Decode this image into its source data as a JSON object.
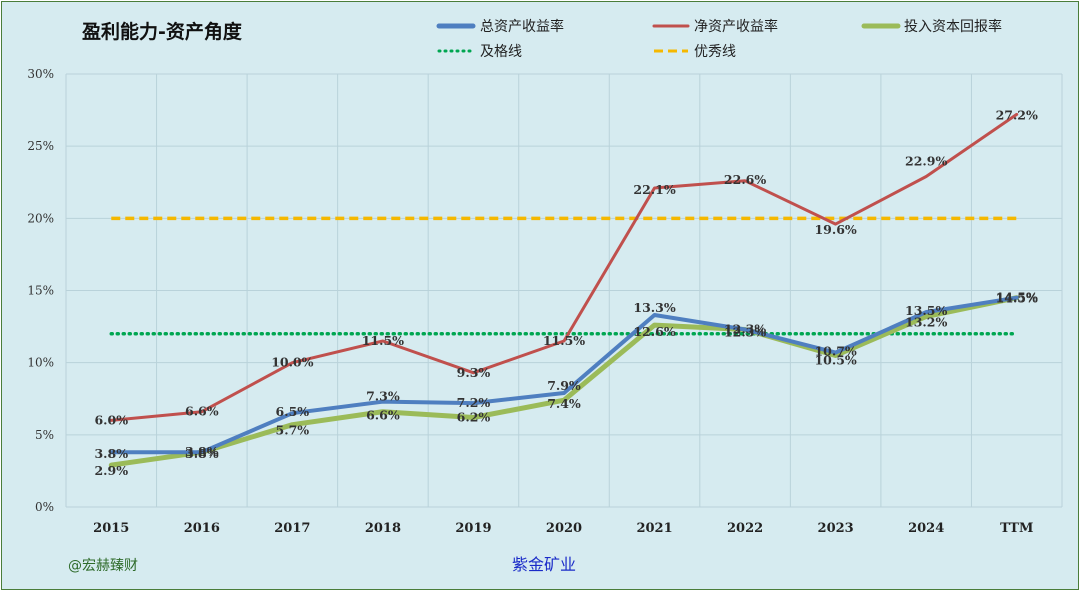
{
  "watermark": "@宏赫臻财",
  "company": "紫金矿业",
  "colors": {
    "background": "#d6ebf0",
    "grid": "#b9d2da",
    "roa": "#4f7fc0",
    "roe": "#c0504d",
    "roic": "#9bbb59",
    "pass": "#00a651",
    "excellent": "#f5b800"
  },
  "chart_data": {
    "type": "line",
    "title": "盈利能力-资产角度",
    "categories": [
      "2015",
      "2016",
      "2017",
      "2018",
      "2019",
      "2020",
      "2021",
      "2022",
      "2023",
      "2024",
      "TTM"
    ],
    "ylim": [
      0,
      30
    ],
    "yticks": [
      "0%",
      "5%",
      "10%",
      "15%",
      "20%",
      "25%",
      "30%"
    ],
    "grid": true,
    "legend_position": "top-right",
    "series": [
      {
        "name": "总资产收益率",
        "values": [
          3.8,
          3.8,
          6.5,
          7.3,
          7.2,
          7.9,
          13.3,
          12.3,
          10.7,
          13.5,
          14.5
        ],
        "labels": [
          "3.8%",
          "3.8%",
          "6.5%",
          "7.3%",
          "7.2%",
          "7.9%",
          "13.3%",
          "12.3%",
          "10.7%",
          "13.5%",
          "14.5%"
        ]
      },
      {
        "name": "净资产收益率",
        "values": [
          6.0,
          6.6,
          10.0,
          11.5,
          9.3,
          11.5,
          22.1,
          22.6,
          19.6,
          22.9,
          27.2
        ],
        "labels": [
          "6.0%",
          "6.6%",
          "10.0%",
          "11.5%",
          "9.3%",
          "11.5%",
          "22.1%",
          "22.6%",
          "19.6%",
          "22.9%",
          "27.2%"
        ]
      },
      {
        "name": "投入资本回报率",
        "values": [
          2.9,
          3.8,
          5.7,
          6.6,
          6.2,
          7.4,
          12.6,
          12.3,
          10.5,
          13.2,
          14.5
        ],
        "labels": [
          "2.9%",
          "3.8%",
          "5.7%",
          "6.6%",
          "6.2%",
          "7.4%",
          "12.6%",
          "12.3%",
          "10.5%",
          "13.2%",
          "14.5%"
        ]
      }
    ],
    "reference_lines": [
      {
        "name": "及格线",
        "value": 12
      },
      {
        "name": "优秀线",
        "value": 20
      }
    ]
  }
}
